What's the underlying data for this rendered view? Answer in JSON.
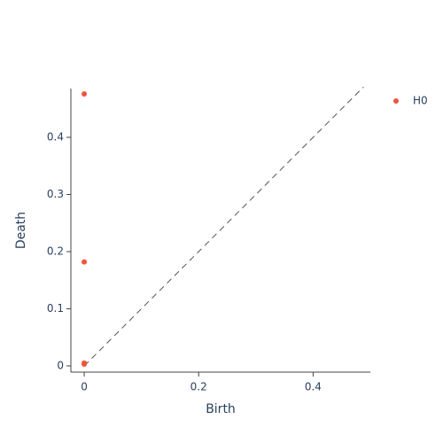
{
  "chart_data": {
    "type": "scatter",
    "x_label": "Birth",
    "y_label": "Death",
    "series": [
      {
        "name": "H0",
        "color": "#ef553b",
        "x": [
          0,
          0,
          0,
          0
        ],
        "values": [
          0.476,
          0.182,
          0.005,
          0.003
        ]
      }
    ],
    "diagonal": {
      "x": [
        0,
        0.488
      ],
      "y": [
        0,
        0.488
      ]
    },
    "xlim": [
      -0.0233,
      0.5
    ],
    "ylim": [
      -0.0109,
      0.4853
    ],
    "xticks": [
      0,
      0.2,
      0.4
    ],
    "yticks": [
      0,
      0.1,
      0.2,
      0.3,
      0.4
    ],
    "legend": "top-right"
  }
}
